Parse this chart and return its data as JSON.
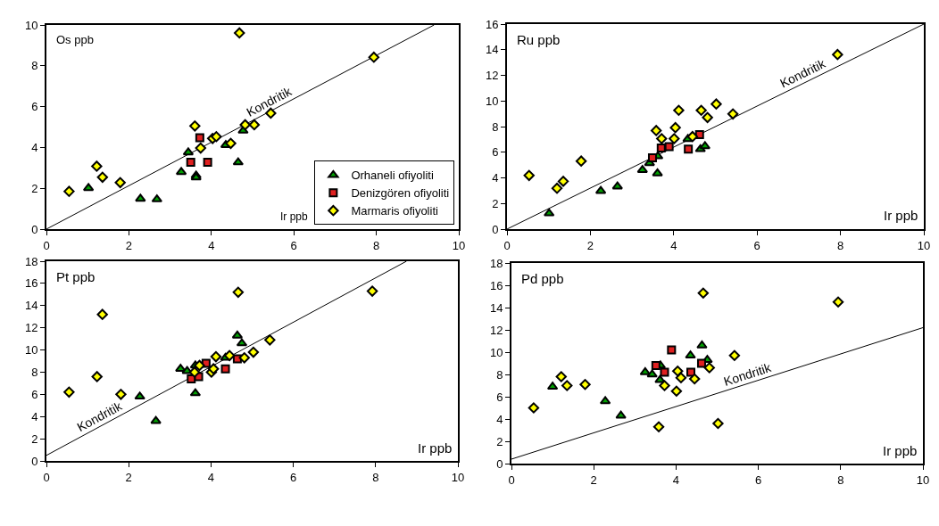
{
  "chart_data": [
    {
      "type": "scatter",
      "xlabel": "Ir ppb",
      "ylabel": "Os ppb",
      "xlim": [
        0,
        10
      ],
      "ylim": [
        0,
        10
      ],
      "xticks": [
        0,
        2,
        4,
        6,
        8,
        10
      ],
      "yticks": [
        0,
        2,
        4,
        6,
        8,
        10
      ],
      "grid": false,
      "legend": "bottom right",
      "annotations": [
        {
          "text": "Kondritik",
          "x": 5.5,
          "y": 5.85
        }
      ],
      "series": [
        {
          "name": "Orhaneli ofiyoliti",
          "color": "#00a000",
          "marker": "triangle",
          "x": [
            1.02,
            2.28,
            2.68,
            3.27,
            3.44,
            3.63,
            3.63,
            4.35,
            4.65,
            4.77
          ],
          "values": [
            2.01,
            1.49,
            1.46,
            2.8,
            3.76,
            2.63,
            2.53,
            4.12,
            3.27,
            4.82
          ]
        },
        {
          "name": "Denizgören ofiyoliti",
          "color": "#e02020",
          "marker": "square",
          "x": [
            3.5,
            3.72,
            3.91
          ],
          "values": [
            3.28,
            4.48,
            3.28
          ]
        },
        {
          "name": "Marmaris ofiyoliti",
          "color": "#ffff00",
          "marker": "diamond",
          "x": [
            0.55,
            1.22,
            1.36,
            1.79,
            3.6,
            3.74,
            4.03,
            4.12,
            4.47,
            4.68,
            4.82,
            5.04,
            5.44,
            7.94
          ],
          "values": [
            1.85,
            3.08,
            2.54,
            2.28,
            5.05,
            3.97,
            4.44,
            4.53,
            4.2,
            9.61,
            5.11,
            5.11,
            5.68,
            8.42
          ]
        },
        {
          "type": "line",
          "color": "#000000",
          "marker": "none",
          "x": [
            0,
            9.4
          ],
          "values": [
            0,
            10
          ]
        }
      ]
    },
    {
      "type": "scatter",
      "xlabel": "Ir ppb",
      "ylabel": "Ru ppb",
      "xlim": [
        0,
        10
      ],
      "ylim": [
        0,
        16
      ],
      "xticks": [
        0,
        2,
        4,
        6,
        8,
        10
      ],
      "yticks": [
        0,
        2,
        4,
        6,
        8,
        10,
        12,
        14,
        16
      ],
      "grid": false,
      "annotations": [
        {
          "text": "Kondritik",
          "x": 7.2,
          "y": 11.52
        }
      ],
      "series": [
        {
          "color": "#00a000",
          "marker": "triangle",
          "x": [
            1.01,
            2.25,
            2.65,
            3.25,
            3.42,
            3.62,
            3.61,
            4.34,
            4.64,
            4.75
          ],
          "values": [
            1.23,
            2.98,
            3.33,
            4.61,
            5.15,
            5.68,
            4.35,
            7.03,
            6.24,
            6.47
          ]
        },
        {
          "color": "#e02020",
          "marker": "square",
          "x": [
            3.49,
            3.7,
            3.89,
            4.35,
            4.62
          ],
          "values": [
            5.57,
            6.33,
            6.43,
            6.24,
            7.38
          ]
        },
        {
          "color": "#ffff00",
          "marker": "diamond",
          "x": [
            0.53,
            1.2,
            1.35,
            1.78,
            3.58,
            3.71,
            4.01,
            4.04,
            4.12,
            4.45,
            4.66,
            4.81,
            5.02,
            5.42,
            7.93
          ],
          "values": [
            4.19,
            3.19,
            3.73,
            5.31,
            7.69,
            7.06,
            7.06,
            7.92,
            9.27,
            7.22,
            9.27,
            8.71,
            9.76,
            8.99,
            13.62
          ]
        },
        {
          "type": "line",
          "color": "#000000",
          "marker": "none",
          "x": [
            0,
            10
          ],
          "values": [
            0,
            16
          ]
        }
      ]
    },
    {
      "type": "scatter",
      "xlabel": "Ir ppb",
      "ylabel": "Pt ppb",
      "xlim": [
        0,
        10
      ],
      "ylim": [
        0,
        18
      ],
      "xticks": [
        0,
        2,
        4,
        6,
        8,
        10
      ],
      "yticks": [
        0,
        2,
        4,
        6,
        8,
        10,
        12,
        14,
        16,
        18
      ],
      "grid": false,
      "annotations": [
        {
          "text": "Kondritik",
          "x": 1.4,
          "y": 3.3
        }
      ],
      "series": [
        {
          "color": "#00a000",
          "marker": "triangle",
          "x": [
            2.27,
            2.66,
            3.26,
            3.42,
            3.62,
            3.62,
            4.35,
            4.64,
            4.75
          ],
          "values": [
            5.8,
            3.6,
            8.3,
            8.1,
            8.6,
            6.1,
            9.3,
            11.3,
            10.6
          ]
        },
        {
          "color": "#e02020",
          "marker": "square",
          "x": [
            3.52,
            3.7,
            3.88,
            4.35,
            4.64
          ],
          "values": [
            7.4,
            7.6,
            8.8,
            8.3,
            9.2
          ]
        },
        {
          "color": "#ffff00",
          "marker": "diamond",
          "x": [
            0.55,
            1.23,
            1.36,
            1.81,
            3.6,
            3.72,
            4.01,
            4.06,
            4.12,
            4.45,
            4.66,
            4.81,
            5.03,
            5.43,
            7.92
          ],
          "values": [
            6.2,
            7.6,
            13.2,
            6.0,
            8.0,
            8.6,
            8.0,
            8.3,
            9.4,
            9.5,
            15.2,
            9.3,
            9.8,
            10.9,
            15.3
          ]
        },
        {
          "type": "line",
          "color": "#000000",
          "marker": "none",
          "x": [
            0,
            8.75
          ],
          "values": [
            0.5,
            18
          ]
        }
      ]
    },
    {
      "type": "scatter",
      "xlabel": "Ir ppb",
      "ylabel": "Pd ppb",
      "xlim": [
        0,
        10
      ],
      "ylim": [
        0,
        18
      ],
      "xticks": [
        0,
        2,
        4,
        6,
        8,
        10
      ],
      "yticks": [
        0,
        2,
        4,
        6,
        8,
        10,
        12,
        14,
        16,
        18
      ],
      "grid": false,
      "annotations": [
        {
          "text": "Kondritik",
          "x": 5.8,
          "y": 7.24
        }
      ],
      "series": [
        {
          "color": "#00a000",
          "marker": "triangle",
          "x": [
            1.0,
            2.28,
            2.66,
            3.25,
            3.42,
            3.62,
            3.61,
            4.35,
            4.63,
            4.76
          ],
          "values": [
            6.9,
            5.6,
            4.3,
            8.2,
            8.0,
            8.8,
            7.5,
            9.7,
            10.6,
            9.3
          ]
        },
        {
          "color": "#e02020",
          "marker": "square",
          "x": [
            3.51,
            3.72,
            3.89,
            4.36,
            4.62
          ],
          "values": [
            8.8,
            8.2,
            10.2,
            8.2,
            9.0
          ]
        },
        {
          "color": "#ffff00",
          "marker": "diamond",
          "x": [
            0.54,
            1.21,
            1.35,
            1.79,
            3.58,
            3.72,
            4.01,
            4.04,
            4.12,
            4.45,
            4.66,
            4.81,
            5.02,
            5.42,
            7.94
          ],
          "values": [
            5.0,
            7.8,
            7.0,
            7.1,
            3.3,
            7.0,
            6.5,
            8.3,
            7.7,
            7.6,
            15.3,
            8.6,
            3.6,
            9.7,
            14.5
          ]
        },
        {
          "type": "line",
          "color": "#000000",
          "marker": "none",
          "x": [
            0,
            10
          ],
          "values": [
            0.4,
            12.2
          ]
        }
      ]
    }
  ]
}
